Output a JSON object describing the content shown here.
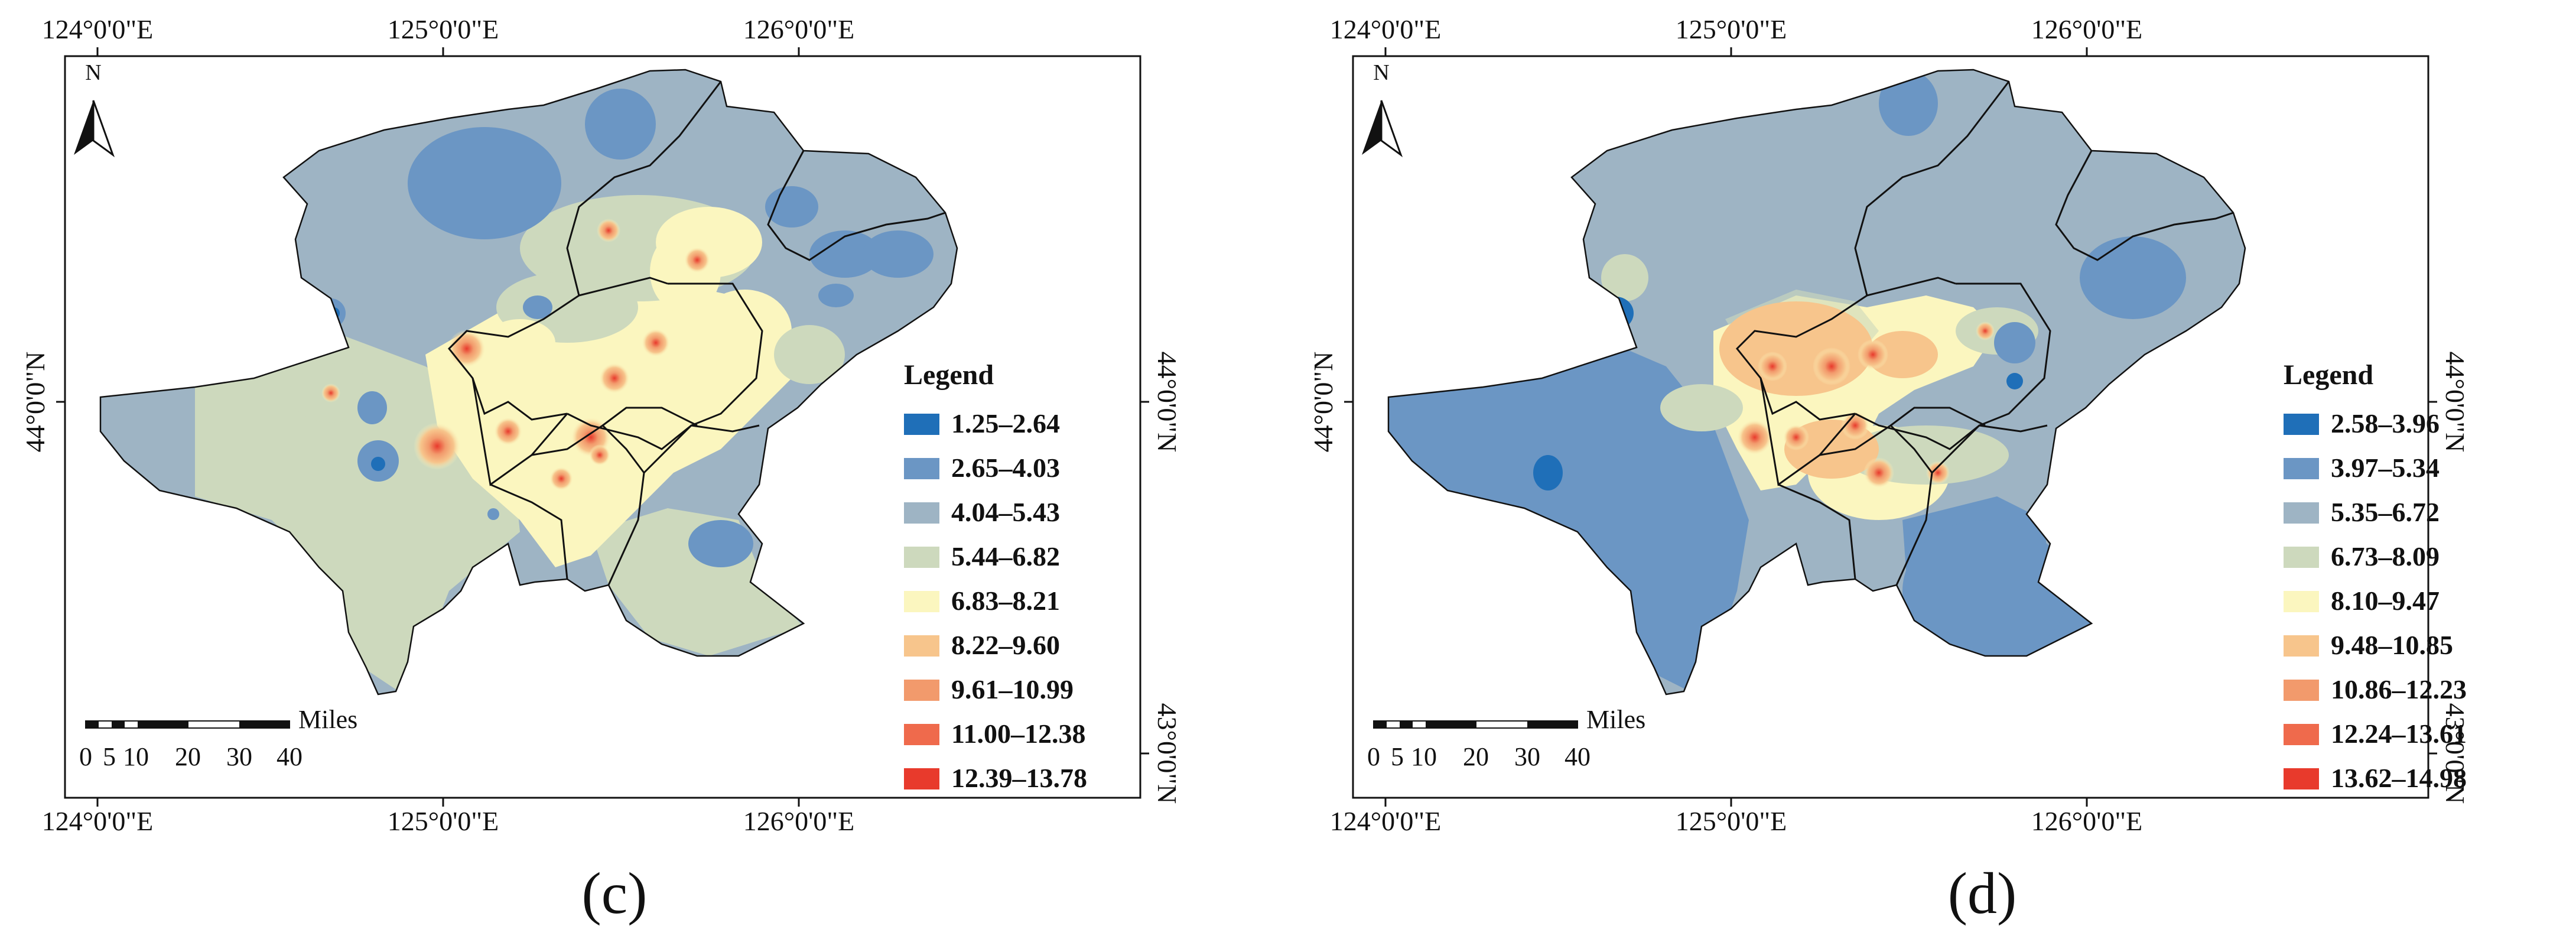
{
  "panels": [
    {
      "caption": "(c)",
      "legend_title": "Legend",
      "legend": [
        {
          "range": "1.25–2.64",
          "color": "#1f6fb8"
        },
        {
          "range": "2.65–4.03",
          "color": "#6b96c4"
        },
        {
          "range": "4.04–5.43",
          "color": "#9eb4c4"
        },
        {
          "range": "5.44–6.82",
          "color": "#cdd9bd"
        },
        {
          "range": "6.83–8.21",
          "color": "#fbf6bf"
        },
        {
          "range": "8.22–9.60",
          "color": "#f7c58c"
        },
        {
          "range": "9.61–10.99",
          "color": "#f29a6c"
        },
        {
          "range": "11.00–12.38",
          "color": "#ef6a4c"
        },
        {
          "range": "12.39–13.78",
          "color": "#e83a2c"
        }
      ],
      "top_ticks": [
        "124°0'0\"E",
        "125°0'0\"E",
        "126°0'0\"E"
      ],
      "bottom_ticks": [
        "124°0'0\"E",
        "125°0'0\"E",
        "126°0'0\"E"
      ],
      "left_ticks": [
        "44°0'0\"N"
      ],
      "right_ticks": [
        "44°0'0\"N",
        "43°0'0\"N"
      ],
      "north": "N",
      "scale_unit": "Miles",
      "scale_labels": [
        "0",
        "5",
        "10",
        "20",
        "30",
        "40"
      ]
    },
    {
      "caption": "(d)",
      "legend_title": "Legend",
      "legend": [
        {
          "range": "2.58–3.96",
          "color": "#1f6fb8"
        },
        {
          "range": "3.97–5.34",
          "color": "#6b96c4"
        },
        {
          "range": "5.35–6.72",
          "color": "#9eb4c4"
        },
        {
          "range": "6.73–8.09",
          "color": "#cdd9bd"
        },
        {
          "range": "8.10–9.47",
          "color": "#fbf6bf"
        },
        {
          "range": "9.48–10.85",
          "color": "#f7c58c"
        },
        {
          "range": "10.86–12.23",
          "color": "#f29a6c"
        },
        {
          "range": "12.24–13.61",
          "color": "#ef6a4c"
        },
        {
          "range": "13.62–14.98",
          "color": "#e83a2c"
        }
      ],
      "top_ticks": [
        "124°0'0\"E",
        "125°0'0\"E",
        "126°0'0\"E"
      ],
      "bottom_ticks": [
        "124°0'0\"E",
        "125°0'0\"E",
        "126°0'0\"E"
      ],
      "left_ticks": [
        "44°0'0\"N"
      ],
      "right_ticks": [
        "44°0'0\"N",
        "43°0'0\"N"
      ],
      "north": "N",
      "scale_unit": "Miles",
      "scale_labels": [
        "0",
        "5",
        "10",
        "20",
        "30",
        "40"
      ]
    }
  ]
}
